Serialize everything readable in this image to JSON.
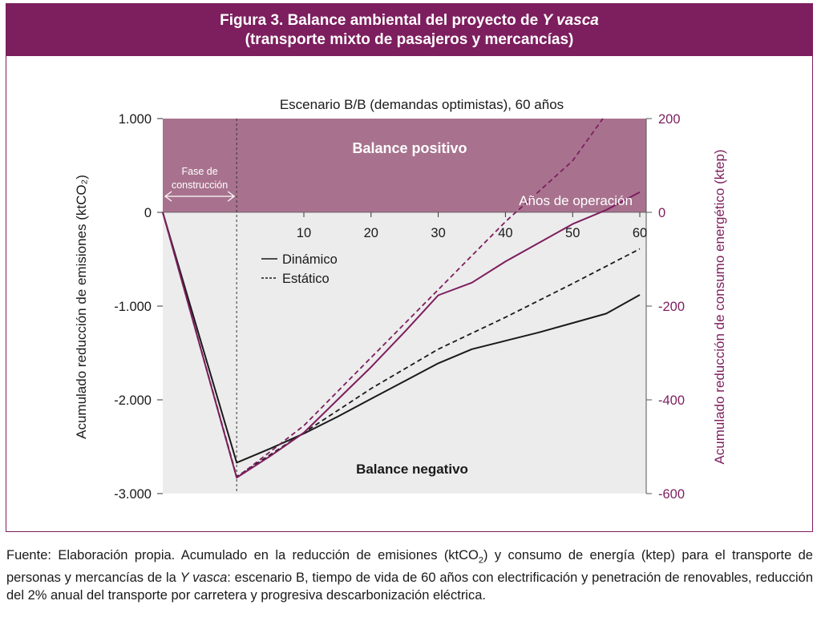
{
  "figure": {
    "title_prefix": "Figura 3. Balance ambiental del proyecto de ",
    "title_italic": "Y vasca",
    "title_line2": "(transporte mixto de pasajeros y mercancías)"
  },
  "chart_data": {
    "type": "line",
    "title": "Escenario B/B (demandas optimistas), 60 años",
    "xlabel": "Años de operación",
    "ylabel_left": "Acumulado reducción de emisiones (ktCO₂)",
    "ylabel_right": "Acumulado reducción de consumo energético (ktep)",
    "x_ticks": [
      10,
      20,
      30,
      40,
      50,
      60
    ],
    "x_tick_labels": [
      "10",
      "20",
      "30",
      "40",
      "50",
      "60"
    ],
    "xlim": [
      -11,
      60
    ],
    "ylim_left": [
      -3000,
      1000
    ],
    "yticks_left": [
      1000,
      0,
      -1000,
      -2000,
      -3000
    ],
    "ytick_labels_left": [
      "1.000",
      "0",
      "-1.000",
      "-2.000",
      "-3.000"
    ],
    "ylim_right": [
      -600,
      200
    ],
    "yticks_right": [
      200,
      0,
      -200,
      -400,
      -600
    ],
    "ytick_labels_right": [
      "200",
      "0",
      "-200",
      "-400",
      "-600"
    ],
    "construction_end": 0,
    "region_labels": {
      "positive": "Balance positivo",
      "negative": "Balance negativo"
    },
    "construction_label": [
      "Fase de",
      "construcción"
    ],
    "legend": {
      "dynamic": "Dinámico",
      "static": "Estático"
    },
    "series": [
      {
        "axis": "left",
        "style": "solid",
        "color": "#1a1a1a",
        "points": [
          [
            -11,
            0
          ],
          [
            0,
            -2670
          ],
          [
            5,
            -2520
          ],
          [
            10,
            -2360
          ],
          [
            15,
            -2180
          ],
          [
            20,
            -1990
          ],
          [
            25,
            -1800
          ],
          [
            30,
            -1610
          ],
          [
            35,
            -1460
          ],
          [
            40,
            -1370
          ],
          [
            45,
            -1280
          ],
          [
            50,
            -1180
          ],
          [
            55,
            -1080
          ],
          [
            60,
            -880
          ]
        ]
      },
      {
        "axis": "left",
        "style": "dashed",
        "color": "#1a1a1a",
        "points": [
          [
            -11,
            0
          ],
          [
            0,
            -2820
          ],
          [
            10,
            -2350
          ],
          [
            20,
            -1880
          ],
          [
            30,
            -1460
          ],
          [
            40,
            -1120
          ],
          [
            50,
            -760
          ],
          [
            60,
            -390
          ]
        ]
      },
      {
        "axis": "right",
        "style": "solid",
        "color": "#7d1e5e",
        "points": [
          [
            -11,
            0
          ],
          [
            0,
            -566
          ],
          [
            5,
            -520
          ],
          [
            10,
            -470
          ],
          [
            15,
            -400
          ],
          [
            20,
            -330
          ],
          [
            25,
            -255
          ],
          [
            30,
            -177
          ],
          [
            35,
            -150
          ],
          [
            40,
            -105
          ],
          [
            45,
            -65
          ],
          [
            50,
            -25
          ],
          [
            55,
            5
          ],
          [
            60,
            43
          ]
        ]
      },
      {
        "axis": "right",
        "style": "dashed",
        "color": "#7d1e5e",
        "points": [
          [
            -11,
            0
          ],
          [
            0,
            -566
          ],
          [
            10,
            -455
          ],
          [
            20,
            -310
          ],
          [
            30,
            -165
          ],
          [
            40,
            -20
          ],
          [
            50,
            110
          ],
          [
            54.5,
            200
          ]
        ]
      }
    ]
  },
  "footnote": {
    "part1": "Fuente: Elaboración propia. Acumulado en la reducción de emisiones (ktCO",
    "sub": "2",
    "part2": ") y consumo de energía (ktep) para el transporte de personas y mercancías de la ",
    "italic": "Y vasca",
    "part3": ": escenario B, tiempo de vida de 60 años con electrificación y penetración de renovables, reducción del 2% anual del transporte por carretera y progresiva descarbonización eléctrica."
  },
  "colors": {
    "brand": "#7d1e5e",
    "positive_fill": "#a8728e",
    "negative_fill": "#ececec"
  }
}
